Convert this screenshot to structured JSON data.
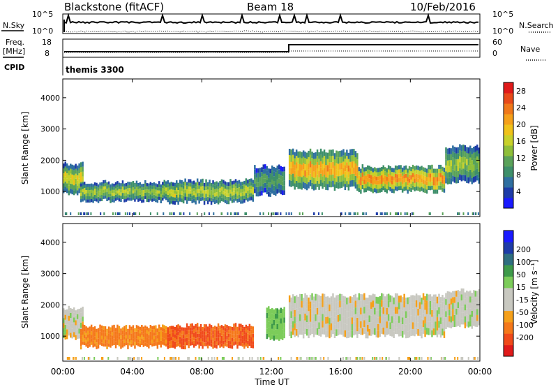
{
  "header": {
    "title": "Blackstone (fitACF)",
    "beam": "Beam 18",
    "date": "10/Feb/2016"
  },
  "top_panels": {
    "nsky_label": "N.Sky",
    "nsky_ticks": [
      "10^5",
      "10^0"
    ],
    "nsearch_label": "N.Search",
    "nsearch_ticks": [
      "10^5",
      "10^0"
    ],
    "freq_label_1": "Freq.",
    "freq_label_2": "[MHz]",
    "freq_ticks": [
      "18",
      "8"
    ],
    "nave_label": "Nave",
    "nave_ticks": [
      "60",
      "0"
    ],
    "cpid_label": "CPID",
    "cpid_value": "themis 3300"
  },
  "colors": {
    "power_scale": [
      "#1a1aff",
      "#1e3ca8",
      "#2f6fa0",
      "#3e8f6a",
      "#5aa25a",
      "#8fbf3a",
      "#c8d12a",
      "#f0c21a",
      "#f5a01a",
      "#f0781a",
      "#e84a1a",
      "#e01a1a"
    ],
    "velocity_scale": [
      "#e01a1a",
      "#f04a1a",
      "#f5781a",
      "#f5a01a",
      "#c8c8c0",
      "#c8c8c0",
      "#7ccc5a",
      "#3e9a4a",
      "#2f6f80",
      "#1e3ca8",
      "#1a1aff"
    ]
  },
  "chart_data": [
    {
      "type": "heatmap",
      "name": "power",
      "ylabel": "Slant Range [km]",
      "xlabel": "",
      "x_ticks": [
        "00:00",
        "04:00",
        "08:00",
        "12:00",
        "16:00",
        "20:00",
        "00:00"
      ],
      "y_ticks": [
        1000,
        2000,
        3000,
        4000
      ],
      "ylim": [
        200,
        4600
      ],
      "xlim_hours": [
        0,
        24
      ],
      "colorbar_label": "Power [dB]",
      "colorbar_ticks": [
        4,
        8,
        12,
        16,
        20,
        24,
        28
      ],
      "colorbar_range": [
        0,
        30
      ],
      "bands": [
        {
          "t": [
            0.0,
            1.2
          ],
          "range": [
            950,
            1900
          ],
          "level": 0.65
        },
        {
          "t": [
            1.0,
            6.0
          ],
          "range": [
            700,
            1300
          ],
          "level": 0.55
        },
        {
          "t": [
            6.0,
            11.0
          ],
          "range": [
            650,
            1350
          ],
          "level": 0.6
        },
        {
          "t": [
            11.0,
            12.8
          ],
          "range": [
            900,
            1800
          ],
          "level": 0.4
        },
        {
          "t": [
            13.0,
            17.0
          ],
          "range": [
            1100,
            2300
          ],
          "level": 0.8
        },
        {
          "t": [
            17.0,
            22.0
          ],
          "range": [
            1000,
            1800
          ],
          "level": 0.85
        },
        {
          "t": [
            22.0,
            24.0
          ],
          "range": [
            1300,
            2450
          ],
          "level": 0.55
        }
      ]
    },
    {
      "type": "heatmap",
      "name": "velocity",
      "ylabel": "Slant Range [km]",
      "xlabel": "Time UT",
      "x_ticks": [
        "00:00",
        "04:00",
        "08:00",
        "12:00",
        "16:00",
        "20:00",
        "00:00"
      ],
      "y_ticks": [
        1000,
        2000,
        3000,
        4000
      ],
      "ylim": [
        200,
        4600
      ],
      "xlim_hours": [
        0,
        24
      ],
      "colorbar_label": "Velocity [m s⁻¹]",
      "colorbar_ticks": [
        "-200",
        "-100",
        "-50",
        "-15",
        "15",
        "50",
        "100",
        "200"
      ],
      "bands": [
        {
          "t": [
            0.0,
            1.2
          ],
          "range": [
            950,
            1900
          ],
          "velocity": 0
        },
        {
          "t": [
            1.0,
            6.0
          ],
          "range": [
            650,
            1300
          ],
          "velocity": -50
        },
        {
          "t": [
            6.0,
            11.0
          ],
          "range": [
            650,
            1350
          ],
          "velocity": -80
        },
        {
          "t": [
            11.7,
            12.8
          ],
          "range": [
            900,
            1900
          ],
          "velocity": 40
        },
        {
          "t": [
            13.0,
            22.0
          ],
          "range": [
            1000,
            2300
          ],
          "velocity": 0
        },
        {
          "t": [
            22.0,
            24.0
          ],
          "range": [
            1300,
            2450
          ],
          "velocity": 0
        }
      ]
    }
  ]
}
